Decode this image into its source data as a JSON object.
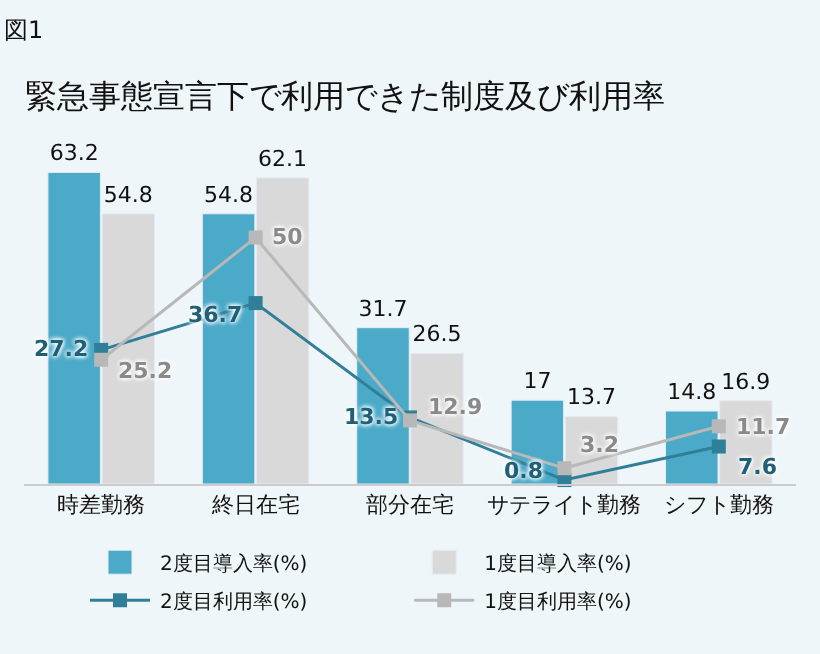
{
  "chart_data": {
    "type": "bar",
    "title": "緊急事態宣言下で利用できた制度及び利用率",
    "annotations": [
      "図1"
    ],
    "categories": [
      "時差勤務",
      "終日在宅",
      "部分在宅",
      "サテライト勤務",
      "シフト勤務"
    ],
    "series": [
      {
        "name": "2度目導入率(%)",
        "color": "#4aaac8",
        "values": [
          63.2,
          54.8,
          31.7,
          17,
          14.8
        ]
      },
      {
        "name": "1度目導入率(%)",
        "color": "#d9d9d9",
        "values": [
          54.8,
          62.1,
          26.5,
          13.7,
          16.9
        ]
      },
      {
        "name": "2度目利用率(%)",
        "type": "line",
        "color": "#2f7f98",
        "values": [
          27.2,
          36.7,
          13.5,
          0.8,
          7.6
        ]
      },
      {
        "name": "1度目利用率(%)",
        "type": "line",
        "color": "#b8b8b8",
        "values": [
          25.2,
          50,
          12.9,
          3.2,
          11.7
        ]
      }
    ],
    "data_labels": true,
    "grid": false,
    "legend": "bottom",
    "marker": "square",
    "line_style": "solid"
  }
}
